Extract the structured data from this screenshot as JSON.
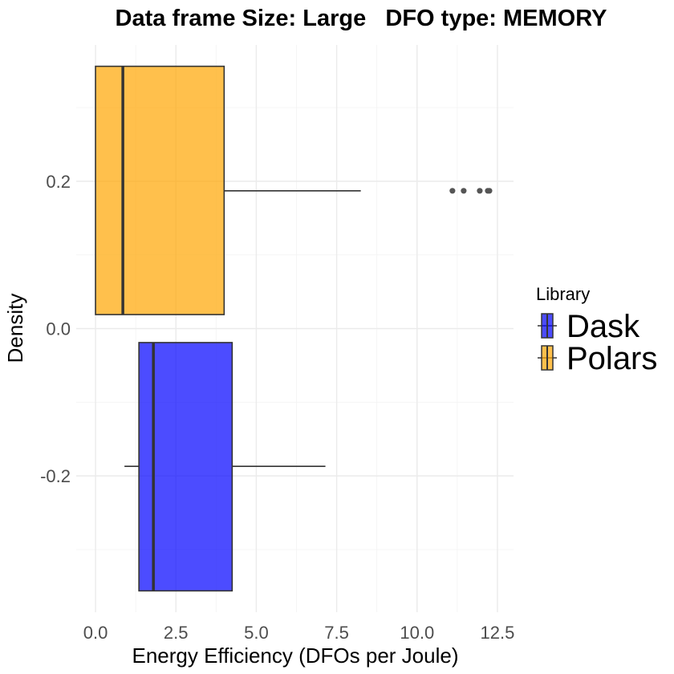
{
  "chart_data": {
    "type": "boxplot",
    "title": "Data frame Size: Large   DFO type: MEMORY",
    "xlabel": "Energy Efficiency (DFOs per Joule)",
    "ylabel": "Density",
    "xlim": [
      -0.6,
      13.0
    ],
    "ylim": [
      -0.385,
      0.385
    ],
    "x_ticks": [
      0.0,
      2.5,
      5.0,
      7.5,
      10.0,
      12.5
    ],
    "x_tick_labels": [
      "0.0",
      "2.5",
      "5.0",
      "7.5",
      "10.0",
      "12.5"
    ],
    "y_ticks": [
      -0.2,
      0.0,
      0.2
    ],
    "y_tick_labels": [
      "-0.2",
      "0.0",
      "0.2"
    ],
    "grid": true,
    "legend": {
      "title": "Library",
      "position": "right",
      "entries": [
        {
          "name": "Dask",
          "color": "#0000ff"
        },
        {
          "name": "Polars",
          "color": "#ffa500"
        }
      ]
    },
    "series": [
      {
        "name": "Polars",
        "color": "#ffa500",
        "y_bottom": 0.019,
        "y_top": 0.356,
        "y_center": 0.187,
        "min": 0.0,
        "q1": 0.0,
        "median": 0.85,
        "q3": 4.0,
        "max": 8.25,
        "outliers": [
          11.1,
          11.45,
          11.95,
          12.2,
          12.25
        ]
      },
      {
        "name": "Dask",
        "color": "#0000ff",
        "y_bottom": -0.356,
        "y_top": -0.019,
        "y_center": -0.187,
        "min": 0.9,
        "q1": 1.35,
        "median": 1.8,
        "q3": 4.25,
        "max": 7.15,
        "outliers": []
      }
    ]
  }
}
